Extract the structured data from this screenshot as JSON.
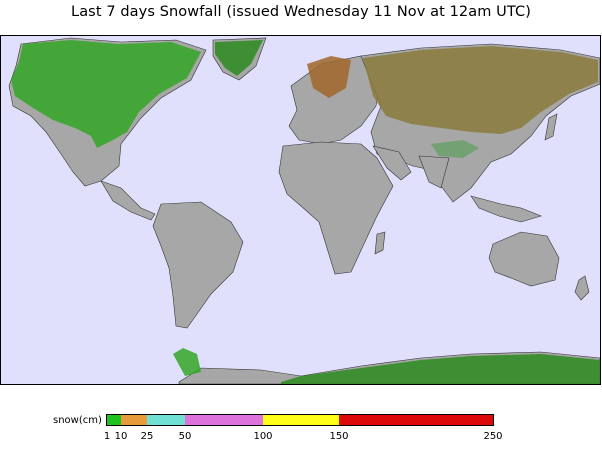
{
  "title": "Last 7 days Snowfall (issued Wednesday 11 Nov at 12am UTC)",
  "map": {
    "ocean_color": "#e0e0fd",
    "land_color": "#a7a7a7",
    "snow_colors": [
      "#33a624",
      "#2c8a1e",
      "#a0662a",
      "#8a7a3c",
      "#6aa06a"
    ]
  },
  "legend": {
    "label": "snow(cm)",
    "segments": [
      {
        "from": 1,
        "to": 10,
        "color": "#1fc21f"
      },
      {
        "from": 10,
        "to": 25,
        "color": "#e89b3a"
      },
      {
        "from": 25,
        "to": 50,
        "color": "#6fe0d2"
      },
      {
        "from": 50,
        "to": 100,
        "color": "#dd72dd"
      },
      {
        "from": 100,
        "to": 150,
        "color": "#ffff1a"
      },
      {
        "from": 150,
        "to": 250,
        "color": "#dd0a0a"
      }
    ],
    "ticks": [
      "1",
      "10",
      "25",
      "50",
      "100",
      "150",
      "250"
    ]
  }
}
